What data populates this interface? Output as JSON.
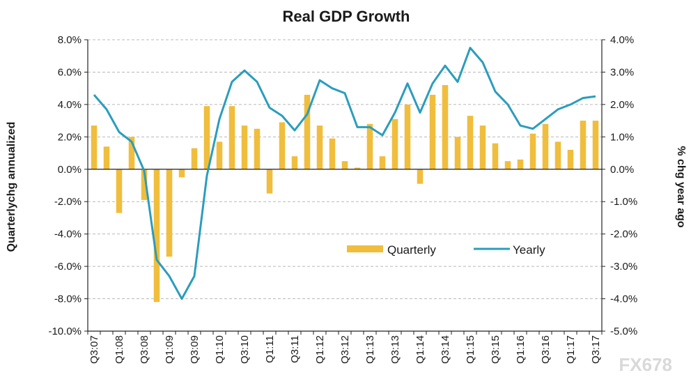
{
  "chart_data": {
    "type": "bar+line",
    "title": "Real GDP Growth",
    "ylabel_left": "Quarterlychg annualized",
    "ylabel_right": "% chg year ago",
    "ylim_left": [
      -10,
      8
    ],
    "ylim_right": [
      -5,
      4
    ],
    "yticks_left": [
      "8.0%",
      "6.0%",
      "4.0%",
      "2.0%",
      "0.0%",
      "-2.0%",
      "-4.0%",
      "-6.0%",
      "-8.0%",
      "-10.0%"
    ],
    "yticks_right": [
      "4.0%",
      "3.0%",
      "2.0%",
      "1.0%",
      "0.0%",
      "-1.0%",
      "-2.0%",
      "-3.0%",
      "-4.0%",
      "-5.0%"
    ],
    "xtick_labels": [
      "Q3:07",
      "Q1:08",
      "Q3:08",
      "Q1:09",
      "Q3:09",
      "Q1:10",
      "Q3:10",
      "Q1:11",
      "Q3:11",
      "Q1:12",
      "Q3:12",
      "Q1:13",
      "Q3:13",
      "Q1:14",
      "Q3:14",
      "Q1:15",
      "Q3:15",
      "Q1:16",
      "Q3:16",
      "Q1:17",
      "Q3:17"
    ],
    "categories": [
      "Q3:07",
      "Q4:07",
      "Q1:08",
      "Q2:08",
      "Q3:08",
      "Q4:08",
      "Q1:09",
      "Q2:09",
      "Q3:09",
      "Q4:09",
      "Q1:10",
      "Q2:10",
      "Q3:10",
      "Q4:10",
      "Q1:11",
      "Q2:11",
      "Q3:11",
      "Q4:11",
      "Q1:12",
      "Q2:12",
      "Q3:12",
      "Q4:12",
      "Q1:13",
      "Q2:13",
      "Q3:13",
      "Q4:13",
      "Q1:14",
      "Q2:14",
      "Q3:14",
      "Q4:14",
      "Q1:15",
      "Q2:15",
      "Q3:15",
      "Q4:15",
      "Q1:16",
      "Q2:16",
      "Q3:16",
      "Q4:16",
      "Q1:17",
      "Q2:17",
      "Q3:17"
    ],
    "series": [
      {
        "name": "Quarterly",
        "type": "bar",
        "axis": "left",
        "color": "#f0be3c",
        "values": [
          2.7,
          1.4,
          -2.7,
          2.0,
          -1.9,
          -8.2,
          -5.4,
          -0.5,
          1.3,
          3.9,
          1.7,
          3.9,
          2.7,
          2.5,
          -1.5,
          2.9,
          0.8,
          4.6,
          2.7,
          1.9,
          0.5,
          0.1,
          2.8,
          0.8,
          3.1,
          4.0,
          -0.9,
          4.6,
          5.2,
          2.0,
          3.3,
          2.7,
          1.6,
          0.5,
          0.6,
          2.2,
          2.8,
          1.7,
          1.2,
          3.0,
          3.0
        ]
      },
      {
        "name": "Yearly",
        "type": "line",
        "axis": "right",
        "color": "#2a9dbd",
        "values": [
          2.3,
          1.85,
          1.15,
          0.85,
          -0.05,
          -2.8,
          -3.3,
          -4.0,
          -3.3,
          -0.2,
          1.55,
          2.7,
          3.05,
          2.7,
          1.9,
          1.65,
          1.2,
          1.7,
          2.75,
          2.5,
          2.35,
          1.3,
          1.3,
          1.05,
          1.75,
          2.65,
          1.75,
          2.65,
          3.2,
          2.7,
          3.75,
          3.3,
          2.4,
          2.0,
          1.35,
          1.25,
          1.55,
          1.85,
          2.0,
          2.2,
          2.25
        ]
      }
    ],
    "legend": [
      "Quarterly",
      "Yearly"
    ],
    "legend_position": "bottom-right"
  },
  "watermark": "FX678"
}
